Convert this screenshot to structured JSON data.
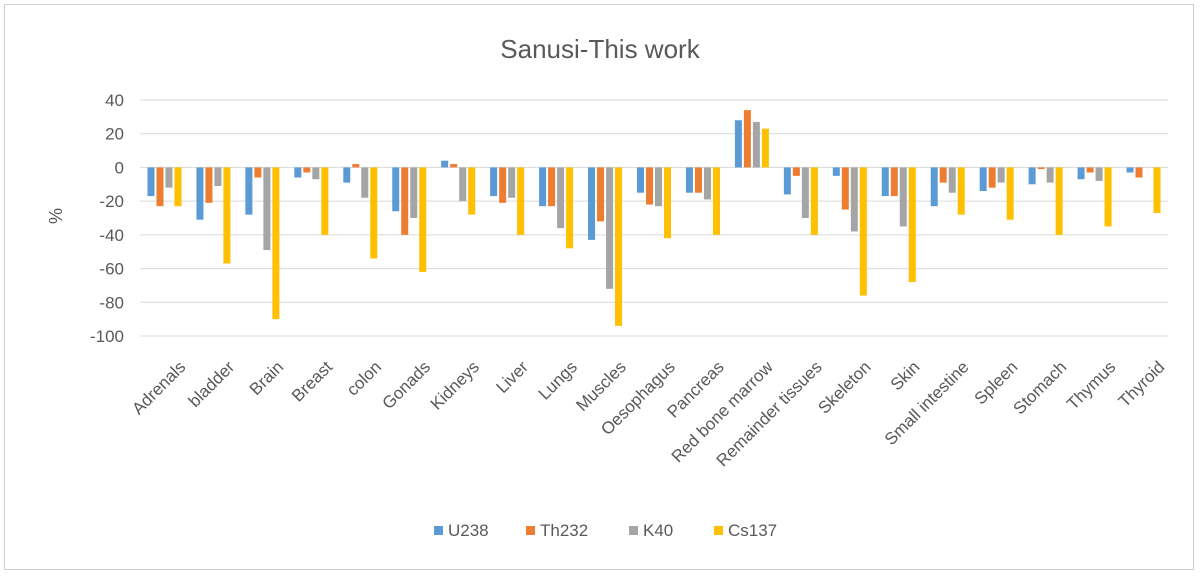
{
  "chart_data": {
    "type": "bar",
    "title": "Sanusi-This work",
    "xlabel": "",
    "ylabel": "%",
    "ylim": [
      -100,
      40
    ],
    "yticks": [
      40,
      20,
      0,
      -20,
      -40,
      -60,
      -80,
      -100
    ],
    "grid": true,
    "legend": "bottom",
    "categories": [
      "Adrenals",
      "bladder",
      "Brain",
      "Breast",
      "colon",
      "Gonads",
      "Kidneys",
      "Liver",
      "Lungs",
      "Muscles",
      "Oesophagus",
      "Pancreas",
      "Red bone marrow",
      "Remainder tissues",
      "Skeleton",
      "Skin",
      "Small intestine",
      "Spleen",
      "Stomach",
      "Thymus",
      "Thyroid"
    ],
    "series": [
      {
        "name": "U238",
        "color": "#5B9BD5",
        "values": [
          -17,
          -31,
          -28,
          -6,
          -9,
          -26,
          4,
          -17,
          -23,
          -43,
          -15,
          -15,
          28,
          -16,
          -5,
          -17,
          -23,
          -14,
          -10,
          -7,
          -3
        ]
      },
      {
        "name": "Th232",
        "color": "#ED7D31",
        "values": [
          -23,
          -21,
          -6,
          -3,
          2,
          -40,
          2,
          -21,
          -23,
          -32,
          -22,
          -15,
          34,
          -5,
          -25,
          -17,
          -9,
          -12,
          -1,
          -3,
          -6
        ]
      },
      {
        "name": "K40",
        "color": "#A5A5A5",
        "values": [
          -12,
          -11,
          -49,
          -7,
          -18,
          -30,
          -20,
          -18,
          -36,
          -72,
          -23,
          -19,
          27,
          -30,
          -38,
          -35,
          -15,
          -9,
          -9,
          -8,
          0
        ]
      },
      {
        "name": "Cs137",
        "color": "#FFC000",
        "values": [
          -23,
          -57,
          -90,
          -40,
          -54,
          -62,
          -28,
          -40,
          -48,
          -94,
          -42,
          -40,
          23,
          -40,
          -76,
          -68,
          -28,
          -31,
          -40,
          -35,
          -27
        ]
      }
    ]
  }
}
